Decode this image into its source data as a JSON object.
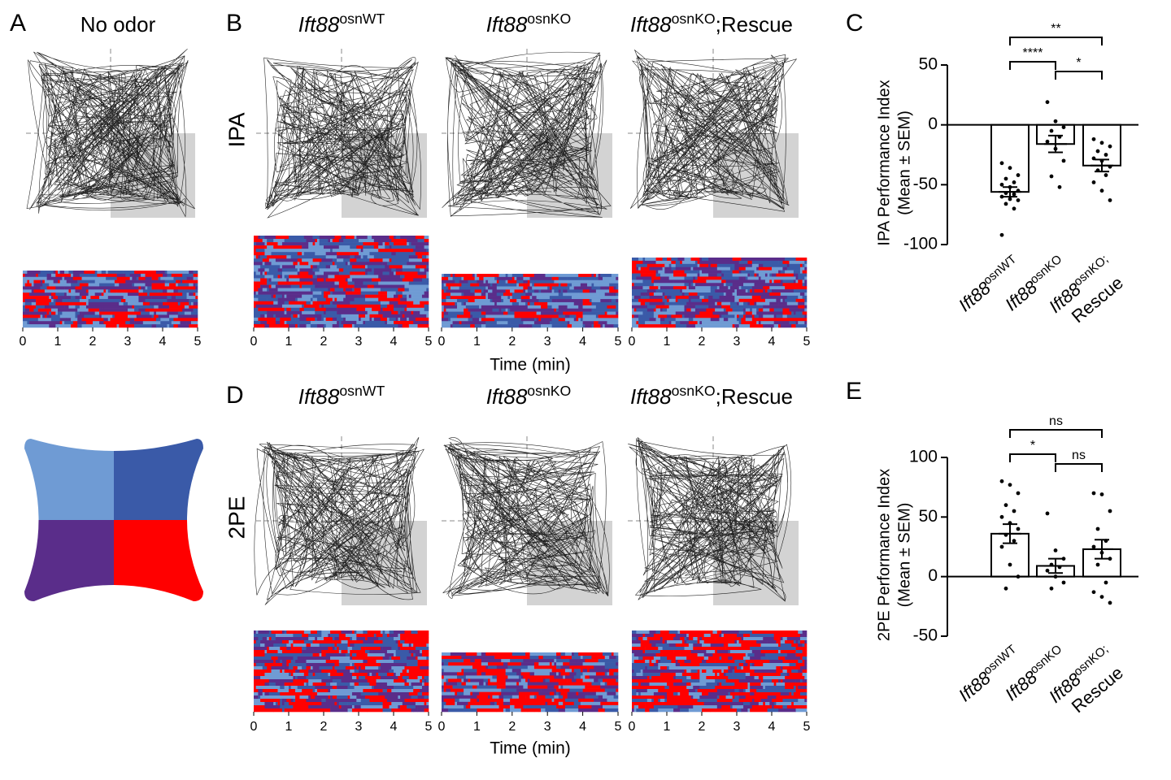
{
  "figure": {
    "panel_A": "A",
    "title_A": "No odor",
    "panel_B": "B",
    "panel_D": "D",
    "genotypes": [
      [
        "Ift88",
        "osnWT"
      ],
      [
        "Ift88",
        "osnKO"
      ],
      [
        "Ift88",
        "osnKO",
        ";Rescue"
      ]
    ],
    "odor_B": "IPA",
    "odor_D": "2PE",
    "time_lim": [
      0,
      5
    ],
    "time_ticks": [
      0,
      1,
      2,
      3,
      4,
      5
    ],
    "time_label": "Time (min)"
  },
  "chart_data": [
    {
      "type": "bar",
      "panel_label": "C",
      "ylabel": [
        "IPA Performance Index",
        "(Mean ± SEM)"
      ],
      "categories": [
        [
          "Ift88",
          "osnWT"
        ],
        [
          "Ift88",
          "osnKO"
        ],
        [
          "Ift88",
          "osnKO;",
          "Rescue"
        ]
      ],
      "values": [
        -56,
        -16,
        -34
      ],
      "errors": [
        4,
        7,
        5
      ],
      "points": [
        [
          -32,
          -36,
          -42,
          -45,
          -48,
          -50,
          -52,
          -55,
          -57,
          -58,
          -60,
          -62,
          -63,
          -66,
          -70,
          -92
        ],
        [
          19,
          3,
          -2,
          -5,
          -10,
          -14,
          -20,
          -30,
          -43,
          -52
        ],
        [
          -12,
          -15,
          -18,
          -22,
          -25,
          -28,
          -30,
          -35,
          -38,
          -42,
          -48,
          -55,
          -63
        ]
      ],
      "annotations": [
        "**",
        "****",
        "*"
      ],
      "ylim": [
        -100,
        50
      ],
      "yticks": [
        -100,
        -50,
        0,
        50
      ]
    },
    {
      "type": "bar",
      "panel_label": "E",
      "ylabel": [
        "2PE Performance Index",
        "(Mean ± SEM)"
      ],
      "categories": [
        [
          "Ift88",
          "osnWT"
        ],
        [
          "Ift88",
          "osnKO"
        ],
        [
          "Ift88",
          "osnKO;",
          "Rescue"
        ]
      ],
      "values": [
        36,
        9,
        23
      ],
      "errors": [
        8,
        6,
        8
      ],
      "points": [
        [
          80,
          77,
          70,
          60,
          55,
          50,
          45,
          40,
          35,
          30,
          25,
          10,
          0,
          -10
        ],
        [
          53,
          22,
          15,
          10,
          8,
          5,
          0,
          -5,
          -10
        ],
        [
          70,
          69,
          55,
          40,
          30,
          25,
          20,
          15,
          10,
          -5,
          -13,
          -17,
          -22
        ]
      ],
      "annotations": [
        "ns",
        "*",
        "ns"
      ],
      "ylim": [
        -50,
        100
      ],
      "yticks": [
        -50,
        0,
        50,
        100
      ]
    }
  ]
}
